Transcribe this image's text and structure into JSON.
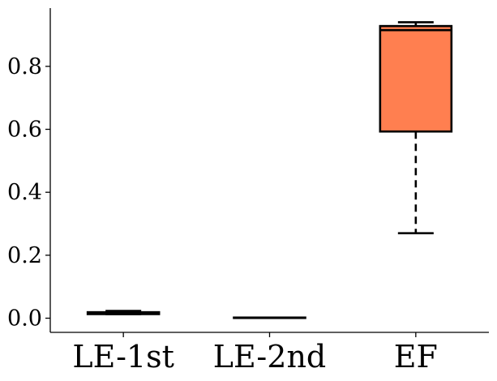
{
  "chart_data": {
    "type": "box",
    "title": "",
    "xlabel": "",
    "ylabel": "",
    "categories": [
      "LE-1st",
      "LE-2nd",
      "EF"
    ],
    "ylim": [
      -0.045,
      0.985
    ],
    "yticks": [
      0.0,
      0.2,
      0.4,
      0.6,
      0.8
    ],
    "ytick_labels": [
      "0.0",
      "0.2",
      "0.4",
      "0.6",
      "0.8"
    ],
    "grid": false,
    "legend": "none",
    "boxes": [
      {
        "category": "LE-1st",
        "whisker_low": 0.013,
        "q1": 0.013,
        "median": 0.016,
        "q3": 0.019,
        "whisker_high": 0.023
      },
      {
        "category": "LE-2nd",
        "whisker_low": 0.002,
        "q1": 0.002,
        "median": 0.002,
        "q3": 0.002,
        "whisker_high": 0.002
      },
      {
        "category": "EF",
        "whisker_low": 0.27,
        "q1": 0.593,
        "median": 0.915,
        "q3": 0.928,
        "whisker_high": 0.94
      }
    ],
    "box_color": "#ff7f50",
    "line_color": "#000000"
  }
}
